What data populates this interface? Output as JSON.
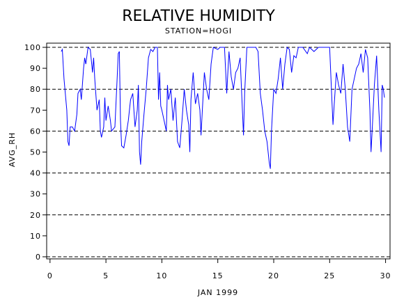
{
  "chart_data": {
    "type": "line",
    "title": "RELATIVE HUMIDITY",
    "subtitle": "STATION=HOGI",
    "x_label": "JAN 1999",
    "y_label": "AVG_RH",
    "xlim": [
      -0.3,
      30.4
    ],
    "ylim": [
      -1,
      102
    ],
    "xticks": [
      0,
      5,
      10,
      15,
      20,
      25,
      30
    ],
    "yticks": [
      0,
      10,
      20,
      30,
      40,
      50,
      60,
      70,
      80,
      90,
      100
    ],
    "grid_lines": [
      0,
      20,
      40,
      60,
      80,
      100
    ],
    "grid_style": "dashed",
    "series": [
      {
        "name": "AVG_RH",
        "color": "#0000ff",
        "x": [
          1.0,
          1.1,
          1.25,
          1.5,
          1.6,
          1.7,
          1.8,
          2.0,
          2.2,
          2.4,
          2.5,
          2.7,
          2.8,
          3.0,
          3.1,
          3.2,
          3.4,
          3.6,
          3.8,
          3.9,
          4.0,
          4.2,
          4.4,
          4.5,
          4.6,
          4.8,
          4.9,
          5.0,
          5.2,
          5.4,
          5.5,
          5.8,
          6.0,
          6.1,
          6.2,
          6.3,
          6.4,
          6.6,
          6.8,
          7.0,
          7.2,
          7.4,
          7.6,
          7.8,
          7.9,
          8.0,
          8.1,
          8.2,
          8.4,
          8.6,
          8.8,
          9.0,
          9.2,
          9.4,
          9.6,
          9.7,
          9.8,
          9.9,
          10.0,
          10.2,
          10.4,
          10.5,
          10.6,
          10.8,
          11.0,
          11.2,
          11.4,
          11.6,
          11.8,
          12.0,
          12.2,
          12.4,
          12.5,
          12.6,
          12.8,
          13.0,
          13.2,
          13.4,
          13.5,
          13.6,
          13.8,
          14.0,
          14.2,
          14.4,
          14.6,
          15.0,
          15.2,
          15.6,
          15.8,
          16.0,
          16.2,
          16.4,
          16.6,
          16.8,
          17.0,
          17.2,
          17.3,
          17.4,
          17.6,
          18.0,
          18.4,
          18.6,
          18.8,
          19.0,
          19.2,
          19.4,
          19.6,
          19.7,
          19.8,
          20.0,
          20.2,
          20.4,
          20.6,
          20.8,
          21.0,
          21.2,
          21.4,
          21.6,
          21.8,
          22.0,
          22.2,
          22.6,
          23.0,
          23.2,
          23.6,
          24.0,
          24.4,
          25.0,
          25.2,
          25.3,
          25.4,
          25.6,
          25.8,
          26.0,
          26.2,
          26.4,
          26.6,
          26.8,
          27.0,
          27.2,
          27.4,
          27.6,
          27.8,
          28.0,
          28.2,
          28.4,
          28.6,
          28.7,
          28.8,
          29.0,
          29.2,
          29.4,
          29.5,
          29.6,
          29.7,
          29.8,
          29.9
        ],
        "values": [
          98,
          99,
          85,
          70,
          55,
          53,
          62,
          62,
          60,
          68,
          78,
          80,
          75,
          90,
          95,
          92,
          100,
          99,
          88,
          95,
          85,
          70,
          75,
          60,
          57,
          62,
          76,
          65,
          72,
          65,
          60,
          62,
          85,
          97,
          98,
          65,
          53,
          52,
          58,
          65,
          75,
          78,
          62,
          70,
          82,
          50,
          44,
          55,
          68,
          80,
          95,
          99,
          98,
          100,
          100,
          75,
          88,
          72,
          70,
          65,
          60,
          82,
          75,
          80,
          65,
          76,
          55,
          52,
          65,
          80,
          70,
          63,
          50,
          75,
          88,
          73,
          78,
          70,
          58,
          68,
          88,
          80,
          75,
          92,
          100,
          99,
          100,
          100,
          78,
          98,
          86,
          80,
          88,
          90,
          95,
          70,
          58,
          78,
          100,
          100,
          100,
          98,
          78,
          70,
          60,
          55,
          45,
          42,
          60,
          80,
          78,
          85,
          95,
          80,
          92,
          100,
          99,
          88,
          96,
          95,
          100,
          100,
          97,
          100,
          98,
          100,
          100,
          100,
          75,
          63,
          72,
          88,
          82,
          78,
          92,
          80,
          62,
          55,
          80,
          85,
          90,
          92,
          97,
          88,
          99,
          95,
          70,
          50,
          60,
          82,
          96,
          70,
          60,
          50,
          82,
          80,
          76
        ]
      }
    ]
  }
}
